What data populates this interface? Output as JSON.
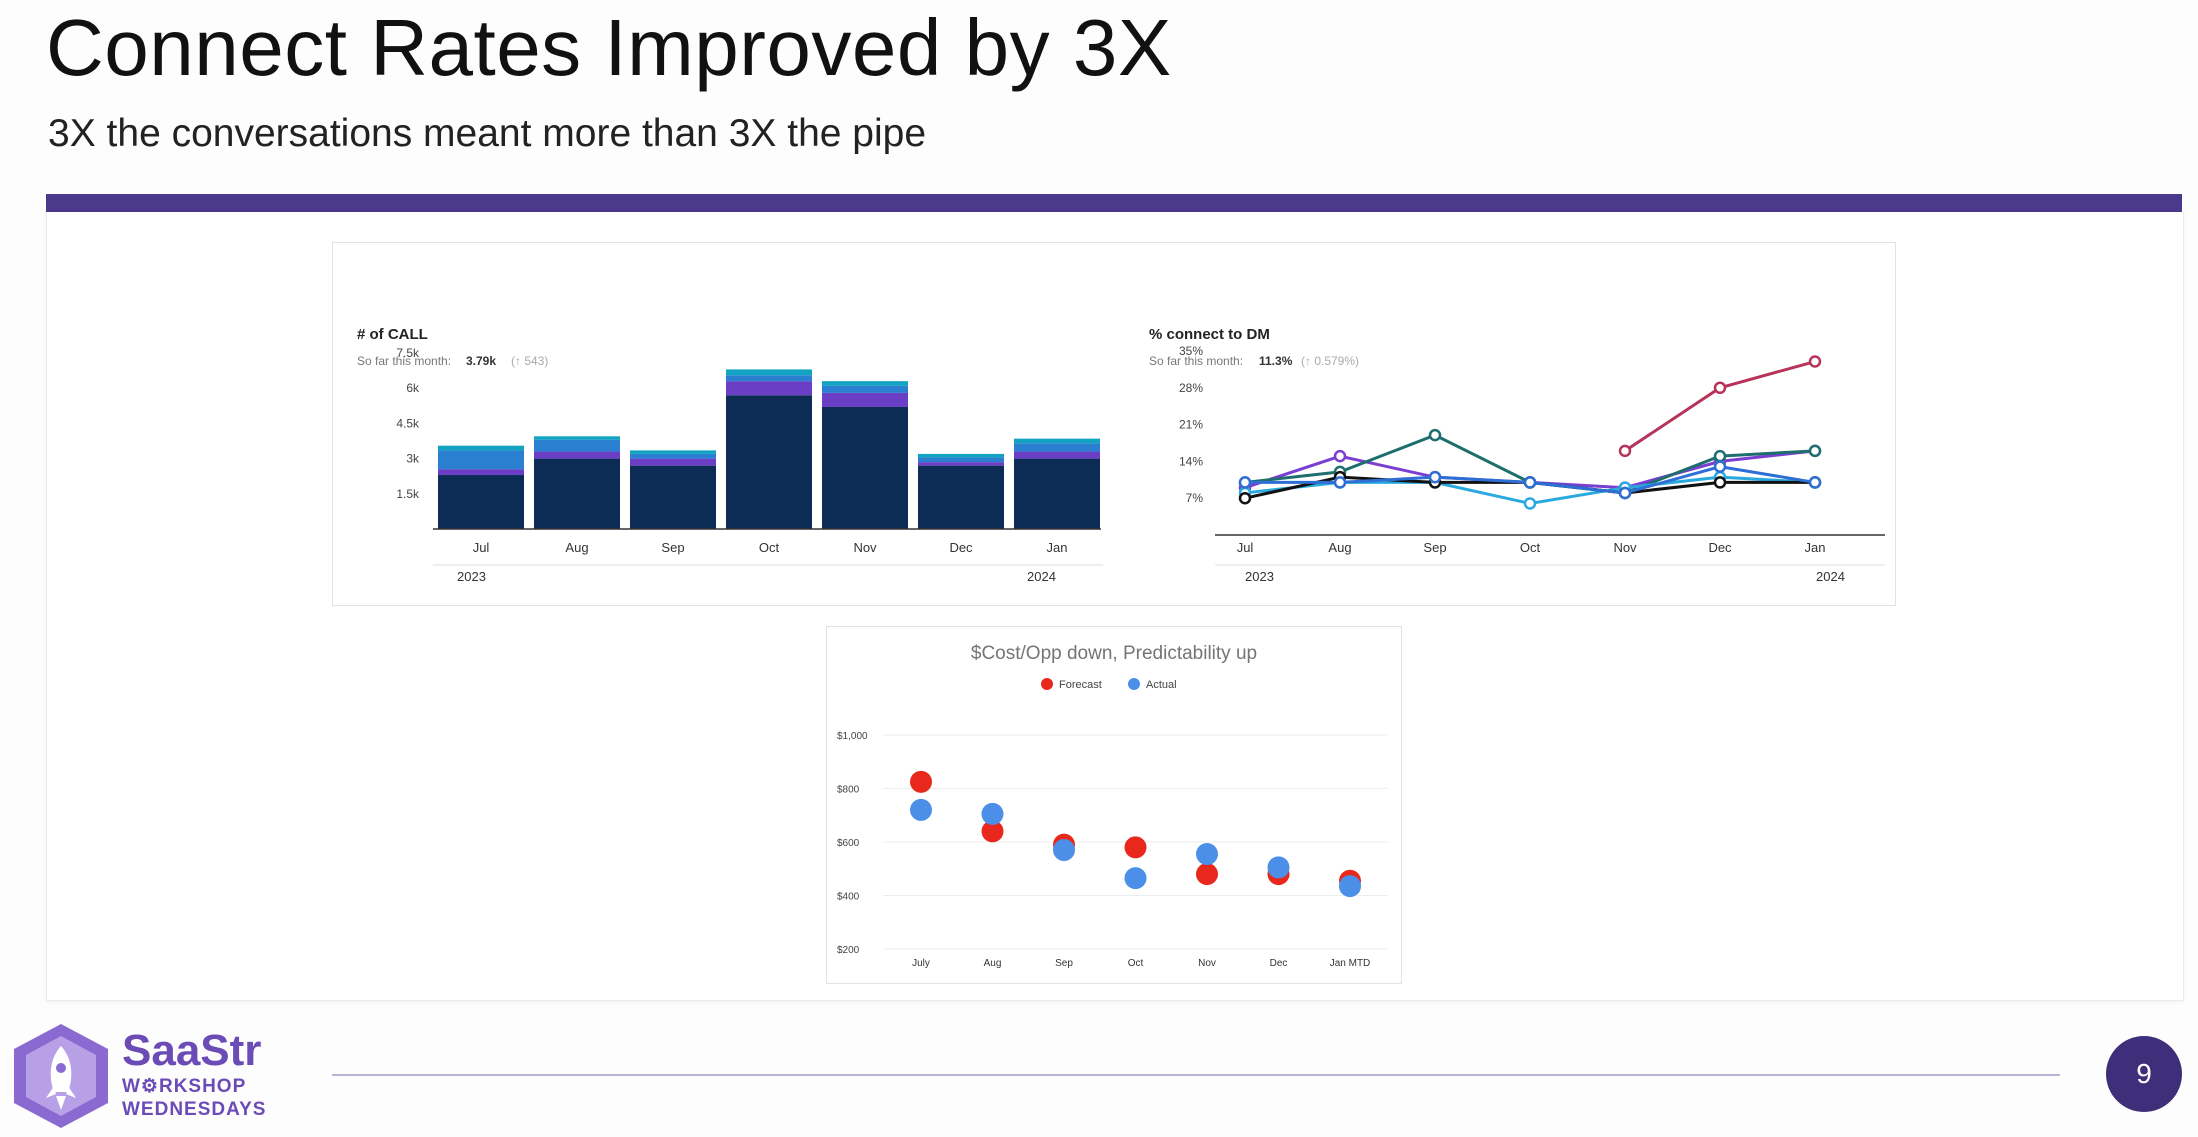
{
  "slide": {
    "title": "Connect Rates Improved by 3X",
    "subtitle": "3X the conversations meant more than 3X the pipe",
    "page_number": "9"
  },
  "logo": {
    "line1": "SaaStr",
    "line2": "W⚙RKSHOP",
    "line3": "WEDNESDAYS",
    "icon": "rocket-hexagon-icon"
  },
  "colors": {
    "accent_bar": "#4b3a8c",
    "navy": "#0c2b55",
    "blue": "#2a7fd1",
    "purple": "#6a3fc6",
    "teal": "#13a3c2",
    "forecast": "#e8281c",
    "actual": "#4b8fe8"
  },
  "chart_data": [
    {
      "type": "bar",
      "title": "# of CALL",
      "summary_label": "So far this month:",
      "summary_value": "3.79k",
      "summary_delta": "(↑ 543)",
      "categories": [
        "Jul",
        "Aug",
        "Sep",
        "Oct",
        "Nov",
        "Dec",
        "Jan"
      ],
      "year_labels": [
        "2023",
        "2024"
      ],
      "yticks": [
        "7.5k",
        "6k",
        "4.5k",
        "3k",
        "1.5k"
      ],
      "ylim": [
        0,
        7500
      ],
      "series": [
        {
          "name": "navy",
          "values": [
            2300,
            3000,
            2700,
            5700,
            5200,
            2700,
            3000
          ]
        },
        {
          "name": "purple",
          "values": [
            250,
            300,
            300,
            600,
            600,
            150,
            300
          ]
        },
        {
          "name": "blue",
          "values": [
            800,
            500,
            200,
            250,
            300,
            200,
            350
          ]
        },
        {
          "name": "teal",
          "values": [
            200,
            150,
            150,
            250,
            200,
            150,
            200
          ]
        }
      ]
    },
    {
      "type": "line",
      "title": "% connect to DM",
      "summary_label": "So far this month:",
      "summary_value": "11.3%",
      "summary_delta": "(↑ 0.579%)",
      "categories": [
        "Jul",
        "Aug",
        "Sep",
        "Oct",
        "Nov",
        "Dec",
        "Jan"
      ],
      "year_labels": [
        "2023",
        "2024"
      ],
      "yticks": [
        "35%",
        "28%",
        "21%",
        "14%",
        "7%"
      ],
      "ylim": [
        0,
        35
      ],
      "series": [
        {
          "name": "crimson",
          "values": [
            null,
            null,
            null,
            null,
            16,
            28,
            33
          ]
        },
        {
          "name": "purple",
          "values": [
            9,
            15,
            11,
            10,
            9,
            14,
            16
          ]
        },
        {
          "name": "teal",
          "values": [
            10,
            12,
            19,
            10,
            8,
            15,
            16
          ]
        },
        {
          "name": "lightblue",
          "values": [
            8,
            10,
            10,
            6,
            9,
            11,
            10
          ]
        },
        {
          "name": "black",
          "values": [
            7,
            11,
            10,
            10,
            8,
            10,
            10
          ]
        },
        {
          "name": "blue",
          "values": [
            10,
            10,
            11,
            10,
            8,
            13,
            10
          ]
        }
      ]
    },
    {
      "type": "scatter",
      "title": "$Cost/Opp down, Predictability up",
      "legend": [
        "Forecast",
        "Actual"
      ],
      "categories": [
        "July",
        "Aug",
        "Sep",
        "Oct",
        "Nov",
        "Dec",
        "Jan MTD"
      ],
      "yticks": [
        "$1,000",
        "$800",
        "$600",
        "$400",
        "$200"
      ],
      "ylim": [
        200,
        1000
      ],
      "series": [
        {
          "name": "Forecast",
          "values": [
            825,
            640,
            590,
            580,
            480,
            480,
            455
          ]
        },
        {
          "name": "Actual",
          "values": [
            720,
            705,
            570,
            465,
            555,
            505,
            435
          ]
        }
      ]
    }
  ]
}
